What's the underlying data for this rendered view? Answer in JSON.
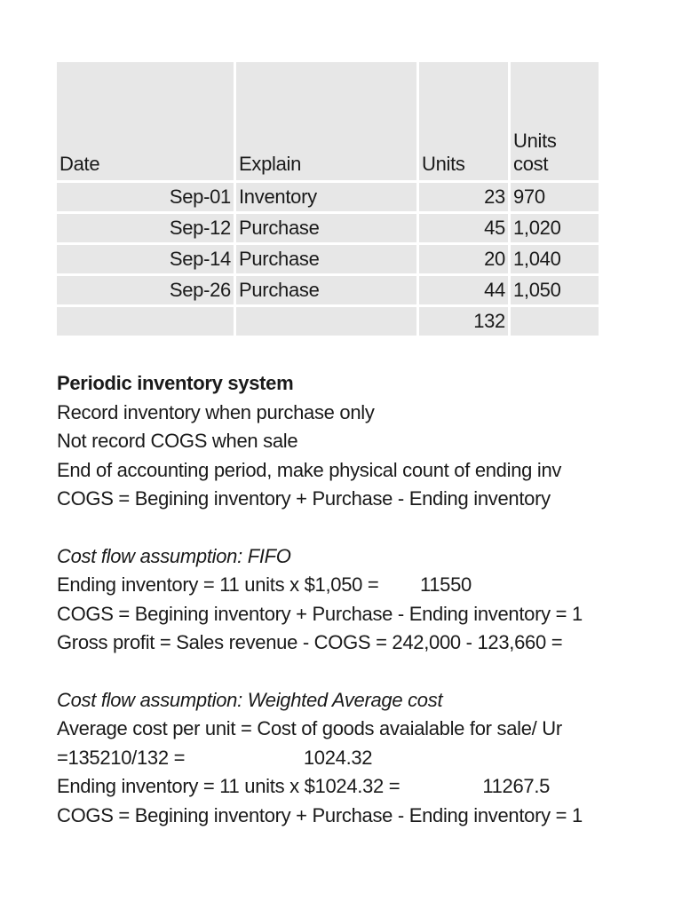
{
  "table": {
    "headers": {
      "date": "Date",
      "explain": "Explain",
      "units": "Units",
      "units_cost": "Units cost"
    },
    "rows": [
      {
        "date": "Sep-01",
        "explain": "Inventory",
        "units": "23",
        "cost": "970"
      },
      {
        "date": "Sep-12",
        "explain": "Purchase",
        "units": "45",
        "cost": "1,020"
      },
      {
        "date": "Sep-14",
        "explain": "Purchase",
        "units": "20",
        "cost": "1,040"
      },
      {
        "date": "Sep-26",
        "explain": "Purchase",
        "units": "44",
        "cost": "1,050"
      },
      {
        "date": "",
        "explain": "",
        "units": "132",
        "cost": ""
      }
    ]
  },
  "periodic": {
    "title": "Periodic inventory system",
    "lines": [
      "Record inventory when purchase only",
      "Not record COGS when sale",
      "End of accounting period, make physical count of ending inv",
      "COGS = Begining inventory + Purchase - Ending inventory"
    ]
  },
  "fifo": {
    "title": "Cost flow assumption: FIFO",
    "lines": [
      "Ending inventory = 11 units x $1,050 =        11550",
      "COGS = Begining inventory + Purchase - Ending inventory = 1",
      "Gross profit = Sales revenue - COGS = 242,000 - 123,660 ="
    ]
  },
  "weighted_average": {
    "title": "Cost flow assumption: Weighted Average cost",
    "lines": [
      "Average cost per unit = Cost of goods avaialable for sale/ Ur",
      "=135210/132 =                       1024.32",
      "Ending inventory = 11 units x $1024.32 =                11267.5",
      "COGS = Begining inventory + Purchase - Ending inventory = 1"
    ]
  },
  "colors": {
    "table_cell_bg": "#e7e7e7",
    "gridline": "#ffffff",
    "text": "#1a1a1a",
    "page_bg": "#ffffff"
  }
}
